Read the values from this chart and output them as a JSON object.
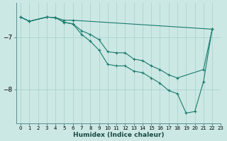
{
  "xlabel": "Humidex (Indice chaleur)",
  "ylabel": "",
  "bg_color": "#cce8e4",
  "grid_color": "#aad4cf",
  "line_color": "#1a7a6e",
  "xlim": [
    -0.5,
    23
  ],
  "ylim": [
    -8.65,
    -6.35
  ],
  "yticks": [
    -8,
    -7
  ],
  "xticks": [
    0,
    1,
    2,
    3,
    4,
    5,
    6,
    7,
    8,
    9,
    10,
    11,
    12,
    13,
    14,
    15,
    16,
    17,
    18,
    19,
    20,
    21,
    22,
    23
  ],
  "series": [
    {
      "x": [
        0,
        1,
        3,
        4,
        5,
        6,
        22
      ],
      "y": [
        -6.62,
        -6.7,
        -6.62,
        -6.63,
        -6.68,
        -6.68,
        -6.85
      ]
    },
    {
      "x": [
        0,
        1,
        3,
        4,
        5,
        6,
        7,
        8,
        9,
        10,
        11,
        12,
        13,
        14,
        15,
        16,
        17,
        18,
        21,
        22
      ],
      "y": [
        -6.62,
        -6.7,
        -6.62,
        -6.63,
        -6.72,
        -6.75,
        -6.88,
        -6.95,
        -7.05,
        -7.28,
        -7.3,
        -7.3,
        -7.42,
        -7.45,
        -7.55,
        -7.62,
        -7.72,
        -7.78,
        -7.62,
        -6.85
      ]
    },
    {
      "x": [
        0,
        1,
        3,
        4,
        5,
        6,
        7,
        8,
        9,
        10,
        11,
        12,
        13,
        14,
        15,
        16,
        17,
        18,
        19,
        20,
        21,
        22
      ],
      "y": [
        -6.62,
        -6.7,
        -6.62,
        -6.63,
        -6.72,
        -6.75,
        -6.95,
        -7.08,
        -7.25,
        -7.52,
        -7.55,
        -7.55,
        -7.65,
        -7.68,
        -7.78,
        -7.88,
        -8.02,
        -8.08,
        -8.45,
        -8.42,
        -7.85,
        -6.85
      ]
    }
  ]
}
